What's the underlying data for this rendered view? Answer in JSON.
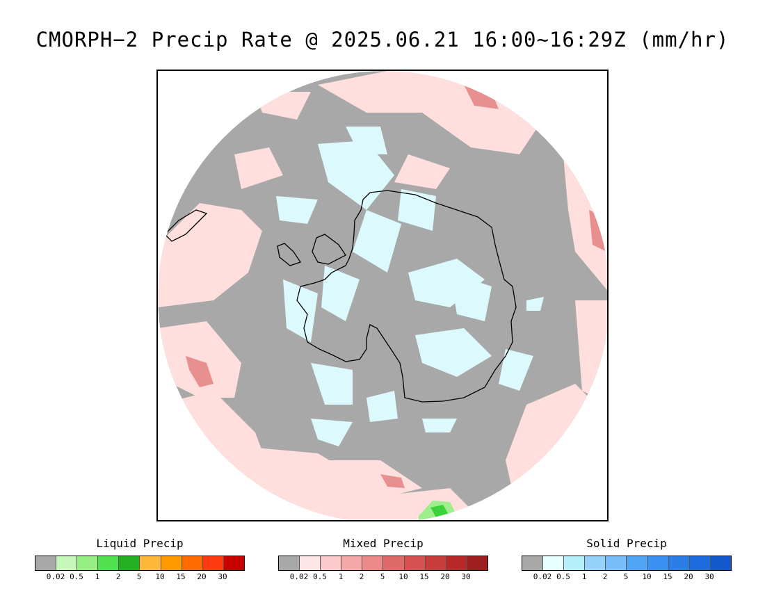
{
  "title": "CMORPH−2 Precip Rate @ 2025.06.21 16:00~16:29Z (mm/hr)",
  "map": {
    "projection": "south-polar-stereographic",
    "colors": {
      "no_precip": "#a8a8a8",
      "mixed_light": "#ffdede",
      "mixed_moderate": "#e89090",
      "solid_light": "#dcfafd",
      "liquid_light": "#9eef8c",
      "liquid_moderate": "#3cd23c",
      "coastline": "#000000",
      "background": "#ffffff"
    }
  },
  "legends": [
    {
      "title": "Liquid Precip",
      "ticks": [
        "0.02",
        "0.5",
        "1",
        "2",
        "5",
        "10",
        "15",
        "20",
        "30"
      ],
      "colors": [
        "#a8a8a8",
        "#c8f7bc",
        "#96ee82",
        "#50e050",
        "#22b022",
        "#ffb83a",
        "#ff9a00",
        "#ff6a00",
        "#ff3a10",
        "#c80000"
      ]
    },
    {
      "title": "Mixed Precip",
      "ticks": [
        "0.02",
        "0.5",
        "1",
        "2",
        "5",
        "10",
        "15",
        "20",
        "30"
      ],
      "colors": [
        "#a8a8a8",
        "#ffe6e6",
        "#fccaca",
        "#f4a8a8",
        "#ec8a8a",
        "#e06a6a",
        "#d65252",
        "#c83c3c",
        "#b82828",
        "#9c1e1e"
      ]
    },
    {
      "title": "Solid Precip",
      "ticks": [
        "0.02",
        "0.5",
        "1",
        "2",
        "5",
        "10",
        "15",
        "20",
        "30"
      ],
      "colors": [
        "#a8a8a8",
        "#e6ffff",
        "#b4eef8",
        "#96d2fa",
        "#78befa",
        "#50a6f4",
        "#3a90f0",
        "#2a7ee6",
        "#1c6ce0",
        "#1058cc"
      ]
    }
  ]
}
